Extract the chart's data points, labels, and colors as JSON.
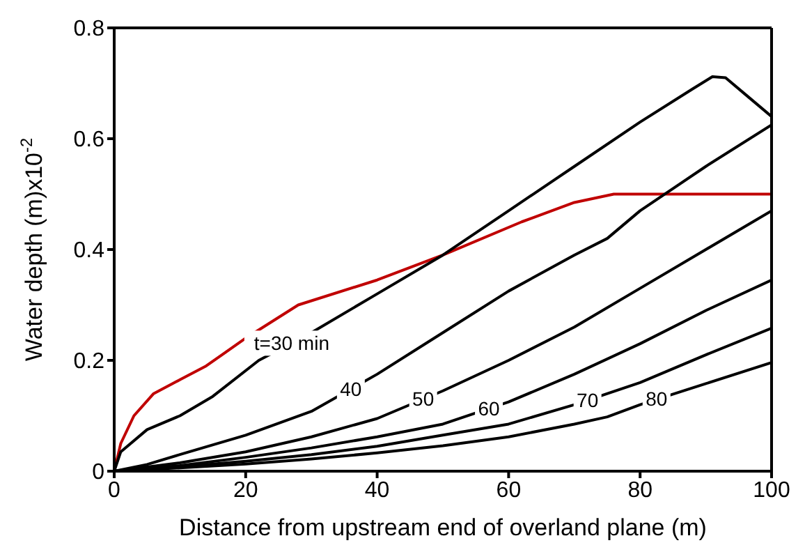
{
  "chart_data": {
    "type": "line",
    "xlabel": "Distance  from upstream  end of overland plane (m)",
    "ylabel": "Water depth (m)x10$^{-2}$",
    "xlim": [
      0,
      100
    ],
    "ylim": [
      0,
      0.8
    ],
    "xticks": [
      0,
      20,
      40,
      60,
      80,
      100
    ],
    "yticks": [
      0,
      0.2,
      0.4,
      0.6,
      0.8
    ],
    "grid": false,
    "legend": false,
    "marker": "none",
    "line_style": "solid",
    "series": [
      {
        "color": "#c00000",
        "x": [
          0,
          1,
          3,
          6,
          10,
          14,
          20,
          28,
          40,
          50,
          62,
          70,
          76,
          80,
          100
        ],
        "values": [
          0,
          0.05,
          0.1,
          0.14,
          0.165,
          0.19,
          0.24,
          0.3,
          0.345,
          0.39,
          0.45,
          0.485,
          0.5,
          0.5,
          0.5
        ]
      },
      {
        "color": "#000000",
        "x": [
          0,
          1,
          5,
          10,
          15,
          22,
          30,
          40,
          50,
          60,
          70,
          80,
          88,
          91,
          93,
          96,
          100
        ],
        "values": [
          0,
          0.035,
          0.075,
          0.1,
          0.135,
          0.2,
          0.25,
          0.32,
          0.39,
          0.47,
          0.55,
          0.63,
          0.69,
          0.712,
          0.71,
          0.68,
          0.64
        ]
      },
      {
        "color": "#000000",
        "x": [
          0,
          5,
          10,
          20,
          30,
          40,
          50,
          60,
          70,
          75,
          80,
          90,
          100
        ],
        "values": [
          0,
          0.012,
          0.03,
          0.065,
          0.108,
          0.175,
          0.25,
          0.325,
          0.39,
          0.42,
          0.47,
          0.55,
          0.625
        ]
      },
      {
        "color": "#000000",
        "x": [
          0,
          10,
          20,
          30,
          40,
          50,
          60,
          70,
          80,
          90,
          100
        ],
        "values": [
          0,
          0.015,
          0.035,
          0.062,
          0.095,
          0.145,
          0.2,
          0.26,
          0.33,
          0.4,
          0.47
        ]
      },
      {
        "color": "#000000",
        "x": [
          0,
          10,
          20,
          30,
          40,
          50,
          60,
          70,
          80,
          90,
          100
        ],
        "values": [
          0,
          0.01,
          0.025,
          0.042,
          0.062,
          0.085,
          0.125,
          0.175,
          0.23,
          0.29,
          0.345
        ]
      },
      {
        "color": "#000000",
        "x": [
          0,
          10,
          20,
          30,
          40,
          50,
          60,
          70,
          80,
          90,
          100
        ],
        "values": [
          0,
          0.008,
          0.018,
          0.03,
          0.045,
          0.065,
          0.085,
          0.12,
          0.16,
          0.21,
          0.258
        ]
      },
      {
        "color": "#000000",
        "x": [
          0,
          10,
          20,
          30,
          40,
          50,
          60,
          70,
          75,
          80,
          90,
          100
        ],
        "values": [
          0,
          0.006,
          0.013,
          0.022,
          0.033,
          0.046,
          0.062,
          0.085,
          0.098,
          0.12,
          0.158,
          0.196
        ]
      }
    ],
    "annotations": [
      {
        "text": "t=30 min",
        "x": 27,
        "y": 0.231
      },
      {
        "text": "40",
        "x": 36,
        "y": 0.148
      },
      {
        "text": "50",
        "x": 47,
        "y": 0.13
      },
      {
        "text": "60",
        "x": 57,
        "y": 0.113
      },
      {
        "text": "70",
        "x": 72,
        "y": 0.128
      },
      {
        "text": "80",
        "x": 82.5,
        "y": 0.13
      }
    ]
  }
}
